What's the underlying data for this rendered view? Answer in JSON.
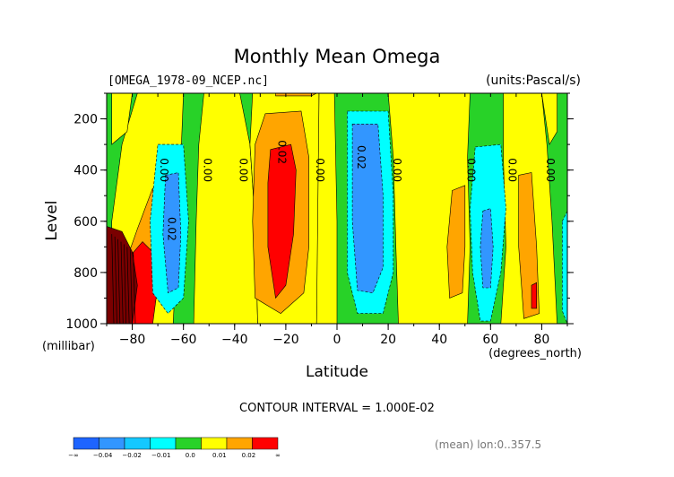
{
  "chart_data": {
    "type": "contour",
    "title": "Monthly Mean Omega",
    "file_label": "[OMEGA_1978-09_NCEP.nc]",
    "units_label": "(units:Pascal/s)",
    "xlabel": "Latitude",
    "x_units": "(degrees_north)",
    "ylabel": "Level",
    "y_units": "(millibar)",
    "xlim": [
      -90,
      90
    ],
    "ylim": [
      1000,
      100
    ],
    "x_ticks": [
      -80,
      -60,
      -40,
      -20,
      0,
      20,
      40,
      60,
      80
    ],
    "x_tick_labels": [
      "-80",
      "-60",
      "-40",
      "-20",
      "0",
      "20",
      "40",
      "60",
      "80"
    ],
    "y_ticks": [
      200,
      400,
      600,
      800,
      1000
    ],
    "y_tick_labels": [
      "200",
      "400",
      "600",
      "800",
      "1000"
    ],
    "contour_interval_text": "CONTOUR INTERVAL = 1.000E-02",
    "mean_note": "(mean) lon:0..357.5",
    "contour_labels": [
      {
        "text": "0.00",
        "lat": -69,
        "lev": 400
      },
      {
        "text": "0.02",
        "lat": -66,
        "lev": 630
      },
      {
        "text": "0.00",
        "lat": -52,
        "lev": 400
      },
      {
        "text": "0.00",
        "lat": -38,
        "lev": 400
      },
      {
        "text": "0.02",
        "lat": -23,
        "lev": 330
      },
      {
        "text": "0.00",
        "lat": -8,
        "lev": 400
      },
      {
        "text": "0.02",
        "lat": 8,
        "lev": 350
      },
      {
        "text": "0.00",
        "lat": 22,
        "lev": 400
      },
      {
        "text": "0.00",
        "lat": 51,
        "lev": 400
      },
      {
        "text": "0.00",
        "lat": 67,
        "lev": 400
      },
      {
        "text": "0.00",
        "lat": 82,
        "lev": 400
      }
    ],
    "colorbar": {
      "levels": [
        "-∞",
        "-0.04",
        "-0.02",
        "-0.01",
        "0.0",
        "0.01",
        "0.02",
        "∞"
      ],
      "colors": [
        "#1e64ff",
        "#3296ff",
        "#14c8ff",
        "#00ffff",
        "#28d228",
        "#ffff00",
        "#ffa500",
        "#ff0000"
      ]
    },
    "fills": {
      "darkblue": "#1e64ff",
      "blue": "#3296ff",
      "cyan": "#00ffff",
      "green": "#28d228",
      "yellow": "#ffff00",
      "orange": "#ffa500",
      "red": "#ff0000",
      "darkred": "#7a0000"
    },
    "regions": [
      {
        "fill": "green",
        "pts": [
          [
            -90,
            100
          ],
          [
            90,
            100
          ],
          [
            90,
            1000
          ],
          [
            -90,
            1000
          ]
        ]
      },
      {
        "fill": "yellow",
        "pts": [
          [
            -78,
            100
          ],
          [
            -60,
            100
          ],
          [
            -62,
            600
          ],
          [
            -64,
            1000
          ],
          [
            -88,
            1000
          ],
          [
            -88,
            600
          ],
          [
            -84,
            300
          ]
        ]
      },
      {
        "fill": "yellow",
        "pts": [
          [
            -52,
            100
          ],
          [
            -38,
            100
          ],
          [
            -34,
            300
          ],
          [
            -32,
            600
          ],
          [
            -31,
            1000
          ],
          [
            -56,
            1000
          ],
          [
            -55,
            600
          ],
          [
            -54,
            300
          ]
        ]
      },
      {
        "fill": "yellow",
        "pts": [
          [
            -33,
            100
          ],
          [
            -7,
            100
          ],
          [
            -7,
            300
          ],
          [
            -7,
            600
          ],
          [
            -8,
            1000
          ],
          [
            -31,
            1000
          ],
          [
            -32,
            600
          ],
          [
            -34,
            300
          ]
        ]
      },
      {
        "fill": "yellow",
        "pts": [
          [
            -7,
            100
          ],
          [
            -1,
            100
          ],
          [
            0,
            600
          ],
          [
            0,
            1000
          ],
          [
            -8,
            1000
          ]
        ]
      },
      {
        "fill": "yellow",
        "pts": [
          [
            20,
            100
          ],
          [
            52,
            100
          ],
          [
            51,
            350
          ],
          [
            52,
            700
          ],
          [
            51,
            1000
          ],
          [
            24,
            1000
          ],
          [
            23,
            700
          ],
          [
            22,
            350
          ]
        ]
      },
      {
        "fill": "yellow",
        "pts": [
          [
            65,
            100
          ],
          [
            80,
            100
          ],
          [
            82,
            300
          ],
          [
            84,
            600
          ],
          [
            86,
            1000
          ],
          [
            64,
            1000
          ],
          [
            66,
            700
          ],
          [
            65,
            350
          ]
        ]
      },
      {
        "fill": "yellow",
        "pts": [
          [
            80,
            100
          ],
          [
            86,
            100
          ],
          [
            86,
            250
          ],
          [
            83,
            300
          ]
        ]
      },
      {
        "fill": "orange",
        "pts": [
          [
            -28,
            180
          ],
          [
            -14,
            170
          ],
          [
            -11,
            350
          ],
          [
            -11,
            700
          ],
          [
            -13,
            880
          ],
          [
            -22,
            960
          ],
          [
            -32,
            900
          ],
          [
            -33,
            600
          ],
          [
            -32,
            300
          ]
        ]
      },
      {
        "fill": "orange",
        "pts": [
          [
            -24,
            100
          ],
          [
            -8,
            100
          ],
          [
            -10,
            110
          ],
          [
            -24,
            110
          ]
        ]
      },
      {
        "fill": "orange",
        "pts": [
          [
            45,
            480
          ],
          [
            50,
            460
          ],
          [
            50,
            700
          ],
          [
            49,
            880
          ],
          [
            44,
            900
          ],
          [
            43,
            700
          ]
        ]
      },
      {
        "fill": "orange",
        "pts": [
          [
            71,
            420
          ],
          [
            76,
            410
          ],
          [
            78,
            700
          ],
          [
            79,
            960
          ],
          [
            73,
            980
          ],
          [
            71,
            700
          ]
        ]
      },
      {
        "fill": "orange",
        "pts": [
          [
            -78,
            630
          ],
          [
            -72,
            470
          ],
          [
            -70,
            700
          ],
          [
            -71,
            900
          ],
          [
            -76,
            1000
          ],
          [
            -82,
            1000
          ],
          [
            -84,
            800
          ]
        ]
      },
      {
        "fill": "red",
        "pts": [
          [
            -26,
            320
          ],
          [
            -18,
            300
          ],
          [
            -16,
            400
          ],
          [
            -17,
            650
          ],
          [
            -20,
            850
          ],
          [
            -24,
            900
          ],
          [
            -27,
            700
          ],
          [
            -27,
            450
          ]
        ]
      },
      {
        "fill": "red",
        "pts": [
          [
            -82,
            750
          ],
          [
            -76,
            680
          ],
          [
            -72,
            720
          ],
          [
            -70,
            850
          ],
          [
            -72,
            1000
          ],
          [
            -82,
            1000
          ]
        ]
      },
      {
        "fill": "red",
        "pts": [
          [
            76,
            850
          ],
          [
            78,
            840
          ],
          [
            78,
            940
          ],
          [
            76,
            940
          ]
        ]
      },
      {
        "fill": "darkred",
        "pts": [
          [
            -90,
            620
          ],
          [
            -84,
            640
          ],
          [
            -80,
            720
          ],
          [
            -78,
            850
          ],
          [
            -80,
            1000
          ],
          [
            -90,
            1000
          ]
        ]
      },
      {
        "fill": "cyan",
        "pts": [
          [
            -70,
            300
          ],
          [
            -60,
            300
          ],
          [
            -58,
            600
          ],
          [
            -60,
            900
          ],
          [
            -66,
            960
          ],
          [
            -72,
            880
          ],
          [
            -73,
            600
          ]
        ]
      },
      {
        "fill": "blue",
        "pts": [
          [
            -67,
            420
          ],
          [
            -62,
            410
          ],
          [
            -61,
            650
          ],
          [
            -62,
            860
          ],
          [
            -66,
            880
          ],
          [
            -68,
            650
          ]
        ]
      },
      {
        "fill": "cyan",
        "pts": [
          [
            4,
            170
          ],
          [
            20,
            170
          ],
          [
            22,
            500
          ],
          [
            22,
            800
          ],
          [
            18,
            960
          ],
          [
            8,
            960
          ],
          [
            4,
            800
          ],
          [
            4,
            500
          ]
        ]
      },
      {
        "fill": "blue",
        "pts": [
          [
            6,
            220
          ],
          [
            16,
            220
          ],
          [
            18,
            500
          ],
          [
            18,
            780
          ],
          [
            14,
            880
          ],
          [
            8,
            870
          ],
          [
            6,
            600
          ]
        ]
      },
      {
        "fill": "cyan",
        "pts": [
          [
            54,
            310
          ],
          [
            64,
            300
          ],
          [
            66,
            550
          ],
          [
            64,
            800
          ],
          [
            60,
            990
          ],
          [
            56,
            990
          ],
          [
            53,
            800
          ],
          [
            52,
            550
          ]
        ]
      },
      {
        "fill": "blue",
        "pts": [
          [
            57,
            560
          ],
          [
            60,
            550
          ],
          [
            61,
            700
          ],
          [
            60,
            860
          ],
          [
            57,
            860
          ],
          [
            56,
            700
          ]
        ]
      },
      {
        "fill": "cyan",
        "pts": [
          [
            88,
            600
          ],
          [
            90,
            560
          ],
          [
            90,
            1000
          ],
          [
            88,
            950
          ]
        ]
      },
      {
        "fill": "yellow",
        "pts": [
          [
            -88,
            100
          ],
          [
            -80,
            100
          ],
          [
            -82,
            250
          ],
          [
            -88,
            300
          ]
        ]
      }
    ]
  }
}
